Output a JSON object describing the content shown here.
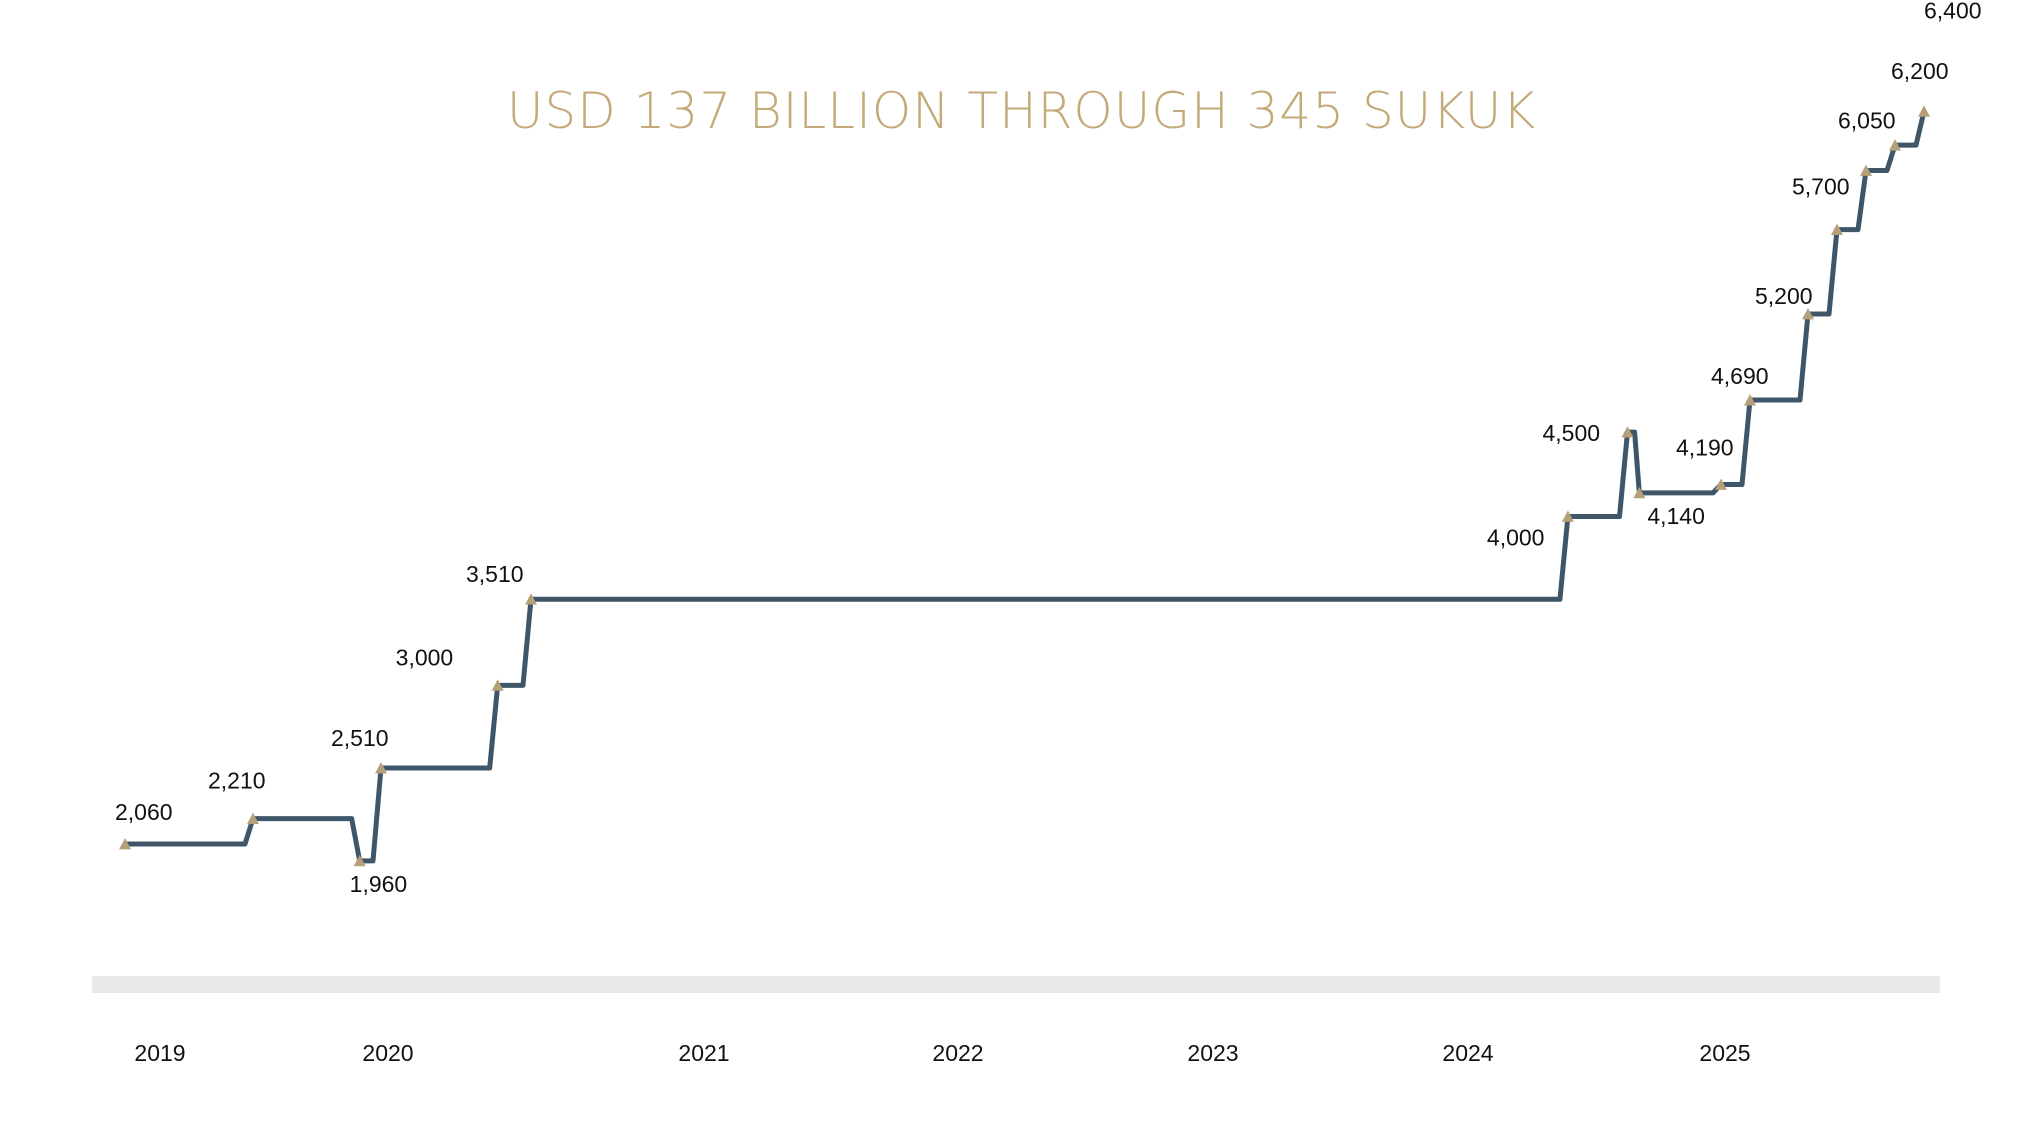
{
  "chart_data": {
    "type": "line",
    "title": "USD 137 BILLION THROUGH 345 SUKUK",
    "xlabel": "",
    "ylabel": "",
    "line_style": "step",
    "colors": {
      "line": "#3e5668",
      "marker": "#b6a079",
      "axis_band": "#e9e9e9",
      "title": "#c4aa78"
    },
    "x_ticks": [
      "2019",
      "2020",
      "2021",
      "2022",
      "2023",
      "2024",
      "2025"
    ],
    "points": [
      {
        "x": "2019-01",
        "y": 2060,
        "label": "2,060"
      },
      {
        "x": "2019-07",
        "y": 2210,
        "label": "2,210"
      },
      {
        "x": "2019-12",
        "y": 1960,
        "label": "1,960"
      },
      {
        "x": "2020-01",
        "y": 2510,
        "label": "2,510"
      },
      {
        "x": "2020-08",
        "y": 3000,
        "label": "3,000"
      },
      {
        "x": "2020-10",
        "y": 3510,
        "label": "3,510"
      },
      {
        "x": "2024-06",
        "y": 4000,
        "label": "4,000"
      },
      {
        "x": "2024-10",
        "y": 4500,
        "label": "4,500"
      },
      {
        "x": "2024-11",
        "y": 4140,
        "label": "4,140"
      },
      {
        "x": "2025-03",
        "y": 4190,
        "label": "4,190"
      },
      {
        "x": "2025-04",
        "y": 4690,
        "label": "4,690"
      },
      {
        "x": "2025-06",
        "y": 5200,
        "label": "5,200"
      },
      {
        "x": "2025-07",
        "y": 5700,
        "label": "5,700"
      },
      {
        "x": "2025-08",
        "y": 6050,
        "label": "6,050"
      },
      {
        "x": "2025-09",
        "y": 6200,
        "label": "6,200"
      },
      {
        "x": "2025-10",
        "y": 6400,
        "label": "6,400"
      }
    ]
  }
}
